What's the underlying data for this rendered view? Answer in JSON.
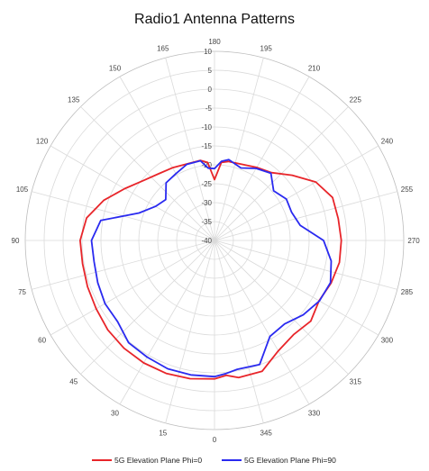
{
  "chart_data": {
    "type": "polar-line",
    "title": "Radio1 Antenna Patterns",
    "angle_ticks": [
      0,
      15,
      30,
      45,
      60,
      75,
      90,
      105,
      120,
      135,
      150,
      165,
      180,
      195,
      210,
      225,
      240,
      255,
      270,
      285,
      300,
      315,
      330,
      345
    ],
    "angle_tick_labels": [
      "0",
      "15",
      "30",
      "45",
      "60",
      "75",
      "90",
      "105",
      "120",
      "135",
      "150",
      "165",
      "180",
      "195",
      "210",
      "225",
      "240",
      "255",
      "270",
      "285",
      "300",
      "315",
      "330",
      "345"
    ],
    "radial_ticks": [
      -40,
      -35,
      -30,
      -25,
      -20,
      -15,
      -10,
      -5,
      0,
      5,
      10
    ],
    "radial_tick_labels": [
      "-40",
      "-35",
      "-30",
      "-25",
      "-20",
      "-15",
      "-10",
      "-5",
      "0",
      "5",
      "10"
    ],
    "rlim": [
      -40,
      10
    ],
    "angle_orientation": "0 at bottom, 90 at left, 180 at top, 270 at right",
    "grid": true,
    "legend_position": "bottom",
    "series": [
      {
        "name": "5G Elevation Plane Phi=0",
        "color": "#e8252a",
        "angles": [
          0,
          10,
          20,
          30,
          40,
          50,
          60,
          70,
          80,
          90,
          100,
          110,
          120,
          130,
          140,
          150,
          160,
          170,
          175,
          180,
          185,
          190,
          200,
          210,
          220,
          230,
          240,
          250,
          260,
          270,
          280,
          290,
          300,
          310,
          320,
          330,
          340,
          350,
          355
        ],
        "values": [
          -3.4,
          -2.9,
          -2.6,
          -2.6,
          -2.8,
          -3.2,
          -3.9,
          -4.3,
          -4.6,
          -4.5,
          -5.7,
          -8.9,
          -12.6,
          -15.4,
          -17.0,
          -17.8,
          -18.5,
          -18.5,
          -19.3,
          -23.9,
          -19.3,
          -18.8,
          -18.6,
          -17.7,
          -16.6,
          -13.2,
          -9.1,
          -6.8,
          -6.8,
          -6.5,
          -6.5,
          -7.2,
          -8.1,
          -6.8,
          -7.5,
          -6.3,
          -3.2,
          -3.2,
          -4.2
        ]
      },
      {
        "name": "5G Elevation Plane Phi=90",
        "color": "#2a2af0",
        "angles": [
          0,
          10,
          20,
          30,
          40,
          50,
          60,
          70,
          80,
          90,
          100,
          110,
          120,
          130,
          140,
          150,
          160,
          170,
          175,
          180,
          185,
          190,
          200,
          210,
          220,
          230,
          240,
          250,
          260,
          270,
          280,
          290,
          300,
          310,
          320,
          330,
          340,
          350,
          355
        ],
        "values": [
          -4.0,
          -3.9,
          -3.9,
          -4.4,
          -4.7,
          -6.6,
          -6.6,
          -7.2,
          -7.7,
          -7.5,
          -9.5,
          -18.8,
          -22.0,
          -23.2,
          -20.1,
          -19.6,
          -18.6,
          -18.6,
          -20.8,
          -21.0,
          -19.0,
          -18.3,
          -19.6,
          -18.0,
          -16.8,
          -19.6,
          -18.1,
          -18.3,
          -17.0,
          -11.2,
          -8.7,
          -7.4,
          -8.0,
          -9.4,
          -11.2,
          -10.7,
          -5.1,
          -5.4,
          -4.7
        ]
      }
    ]
  }
}
